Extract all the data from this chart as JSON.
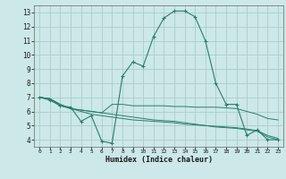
{
  "xlabel": "Humidex (Indice chaleur)",
  "ylabel": "",
  "background_color": "#cce8e8",
  "grid_color": "#aacccc",
  "line_color": "#2a7d6e",
  "xlim": [
    -0.5,
    23.5
  ],
  "ylim": [
    3.5,
    13.5
  ],
  "xticks": [
    0,
    1,
    2,
    3,
    4,
    5,
    6,
    7,
    8,
    9,
    10,
    11,
    12,
    13,
    14,
    15,
    16,
    17,
    18,
    19,
    20,
    21,
    22,
    23
  ],
  "yticks": [
    4,
    5,
    6,
    7,
    8,
    9,
    10,
    11,
    12,
    13
  ],
  "series": [
    {
      "x": [
        0,
        1,
        2,
        3,
        4,
        5,
        6,
        7,
        8,
        9,
        10,
        11,
        12,
        13,
        14,
        15,
        16,
        17,
        18,
        19,
        20,
        21,
        22,
        23
      ],
      "y": [
        7.0,
        6.8,
        6.4,
        6.3,
        5.3,
        5.7,
        3.9,
        3.75,
        8.5,
        9.5,
        9.2,
        11.3,
        12.6,
        13.1,
        13.1,
        12.7,
        11.0,
        8.0,
        6.5,
        6.5,
        4.3,
        4.7,
        4.0,
        4.0
      ],
      "marker": "+"
    },
    {
      "x": [
        0,
        1,
        2,
        3,
        4,
        5,
        6,
        7,
        8,
        9,
        10,
        11,
        12,
        13,
        14,
        15,
        16,
        17,
        18,
        19,
        20,
        21,
        22,
        23
      ],
      "y": [
        7.0,
        6.9,
        6.5,
        6.2,
        6.1,
        6.0,
        5.9,
        6.5,
        6.5,
        6.4,
        6.4,
        6.4,
        6.4,
        6.35,
        6.35,
        6.3,
        6.3,
        6.3,
        6.25,
        6.2,
        6.0,
        5.8,
        5.5,
        5.4
      ],
      "marker": null
    },
    {
      "x": [
        0,
        1,
        2,
        3,
        4,
        5,
        6,
        7,
        8,
        9,
        10,
        11,
        12,
        13,
        14,
        15,
        16,
        17,
        18,
        19,
        20,
        21,
        22,
        23
      ],
      "y": [
        7.0,
        6.9,
        6.5,
        6.2,
        6.1,
        6.0,
        5.9,
        5.8,
        5.7,
        5.6,
        5.5,
        5.4,
        5.35,
        5.3,
        5.2,
        5.1,
        5.0,
        4.95,
        4.9,
        4.85,
        4.75,
        4.65,
        4.3,
        4.1
      ],
      "marker": null
    },
    {
      "x": [
        0,
        1,
        2,
        3,
        4,
        5,
        6,
        7,
        8,
        9,
        10,
        11,
        12,
        13,
        14,
        15,
        16,
        17,
        18,
        19,
        20,
        21,
        22,
        23
      ],
      "y": [
        7.0,
        6.9,
        6.4,
        6.2,
        6.0,
        5.8,
        5.7,
        5.6,
        5.5,
        5.4,
        5.35,
        5.3,
        5.25,
        5.2,
        5.1,
        5.05,
        5.0,
        4.9,
        4.85,
        4.8,
        4.7,
        4.6,
        4.2,
        4.0
      ],
      "marker": null
    }
  ]
}
